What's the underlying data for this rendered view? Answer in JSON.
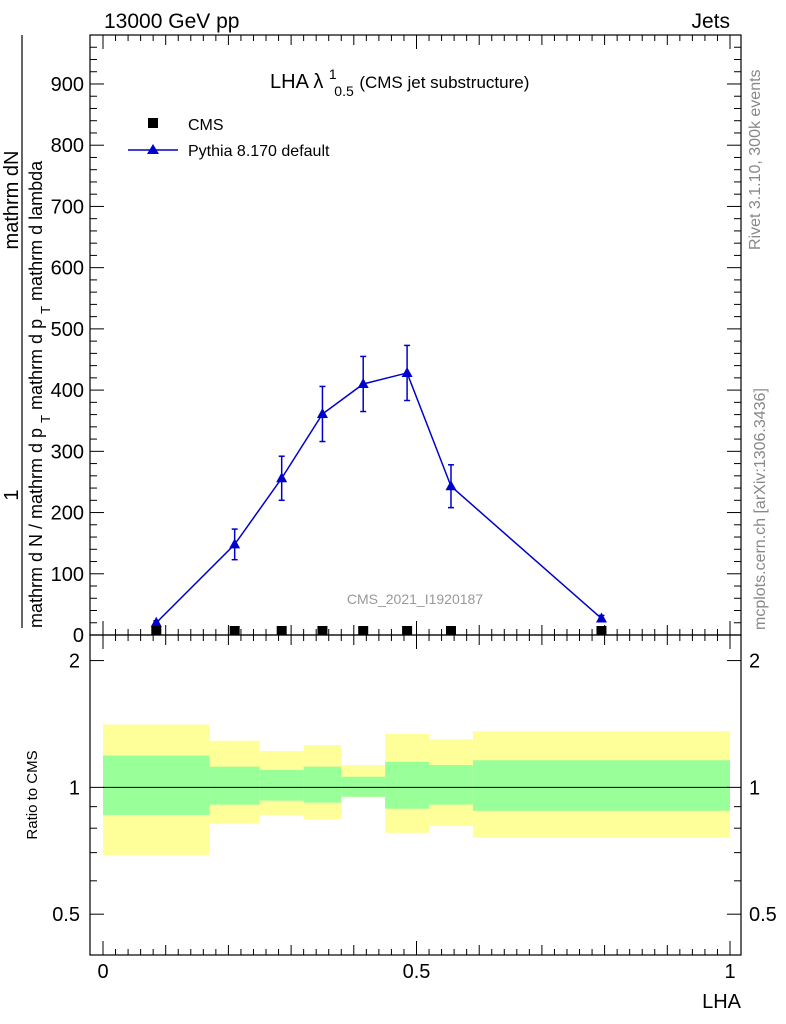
{
  "header": {
    "energy_label": "13000 GeV pp",
    "category_label": "Jets"
  },
  "side": {
    "rivet_label": "Rivet 3.1.10,  300k events",
    "mcplots_label": "mcplots.cern.ch [arXiv:1306.3436]"
  },
  "chart_data": [
    {
      "type": "line",
      "title_main": "LHA λ",
      "title_sup": "1",
      "title_sub": "0.5",
      "title_rest": " (CMS jet substructure)",
      "ylabel_numer_1": "1",
      "ylabel_numer_2": "mathrm dN",
      "ylabel_denom_1": "mathrm d N / mathrm d p",
      "ylabel_denom_sub_1": "T",
      "ylabel_denom_2": " mathrm d p",
      "ylabel_denom_sub_2": "T",
      "ylabel_denom_3": " mathrm d lambda",
      "xlabel": "LHA",
      "xlim": [
        0,
        1
      ],
      "ylim": [
        0,
        980
      ],
      "y_ticks": [
        0,
        100,
        200,
        300,
        400,
        500,
        600,
        700,
        800,
        900
      ],
      "y_tick_labels": [
        "0",
        "100",
        "200",
        "300",
        "400",
        "500",
        "600",
        "700",
        "800",
        "900"
      ],
      "watermark": "CMS_2021_I1920187",
      "legend": [
        "CMS",
        "Pythia 8.170 default"
      ],
      "series": [
        {
          "name": "CMS",
          "color": "#000000",
          "marker": "square",
          "x": [
            0.085,
            0.21,
            0.285,
            0.35,
            0.415,
            0.485,
            0.555,
            0.795
          ],
          "y": [
            1,
            1,
            2,
            3,
            3,
            2,
            1,
            1
          ]
        },
        {
          "name": "Pythia 8.170 default",
          "color": "#0000cc",
          "marker": "triangle",
          "x": [
            0.085,
            0.21,
            0.285,
            0.35,
            0.415,
            0.485,
            0.555,
            0.795
          ],
          "y": [
            20,
            148,
            256,
            361,
            410,
            428,
            243,
            27
          ],
          "err": [
            3,
            25,
            36,
            45,
            45,
            45,
            35,
            5
          ]
        }
      ]
    },
    {
      "type": "area",
      "ylabel": "Ratio to CMS",
      "xlabel": "LHA",
      "xlim": [
        0,
        1
      ],
      "ylim": [
        0.4,
        2.3
      ],
      "y_ticks": [
        0.5,
        1,
        2
      ],
      "y_tick_labels": [
        "0.5",
        "1",
        "2"
      ],
      "x_ticks": [
        0,
        0.5,
        1
      ],
      "x_tick_labels": [
        "0",
        "0.5",
        "1"
      ],
      "reference_line": 1,
      "bins": [
        {
          "lo": 0.0,
          "hi": 0.17,
          "inner": [
            0.86,
            1.19
          ],
          "outer": [
            0.69,
            1.41
          ]
        },
        {
          "lo": 0.17,
          "hi": 0.25,
          "inner": [
            0.91,
            1.12
          ],
          "outer": [
            0.82,
            1.29
          ]
        },
        {
          "lo": 0.25,
          "hi": 0.32,
          "inner": [
            0.93,
            1.1
          ],
          "outer": [
            0.86,
            1.22
          ]
        },
        {
          "lo": 0.32,
          "hi": 0.38,
          "inner": [
            0.92,
            1.12
          ],
          "outer": [
            0.84,
            1.26
          ]
        },
        {
          "lo": 0.38,
          "hi": 0.45,
          "inner": [
            0.95,
            1.06
          ],
          "outer": [
            0.95,
            1.13
          ]
        },
        {
          "lo": 0.45,
          "hi": 0.52,
          "inner": [
            0.89,
            1.15
          ],
          "outer": [
            0.78,
            1.34
          ]
        },
        {
          "lo": 0.52,
          "hi": 0.59,
          "inner": [
            0.91,
            1.13
          ],
          "outer": [
            0.81,
            1.3
          ]
        },
        {
          "lo": 0.59,
          "hi": 1.0,
          "inner": [
            0.88,
            1.16
          ],
          "outer": [
            0.76,
            1.36
          ]
        }
      ],
      "inner_color": "#99ff99",
      "outer_color": "#ffff99"
    }
  ]
}
